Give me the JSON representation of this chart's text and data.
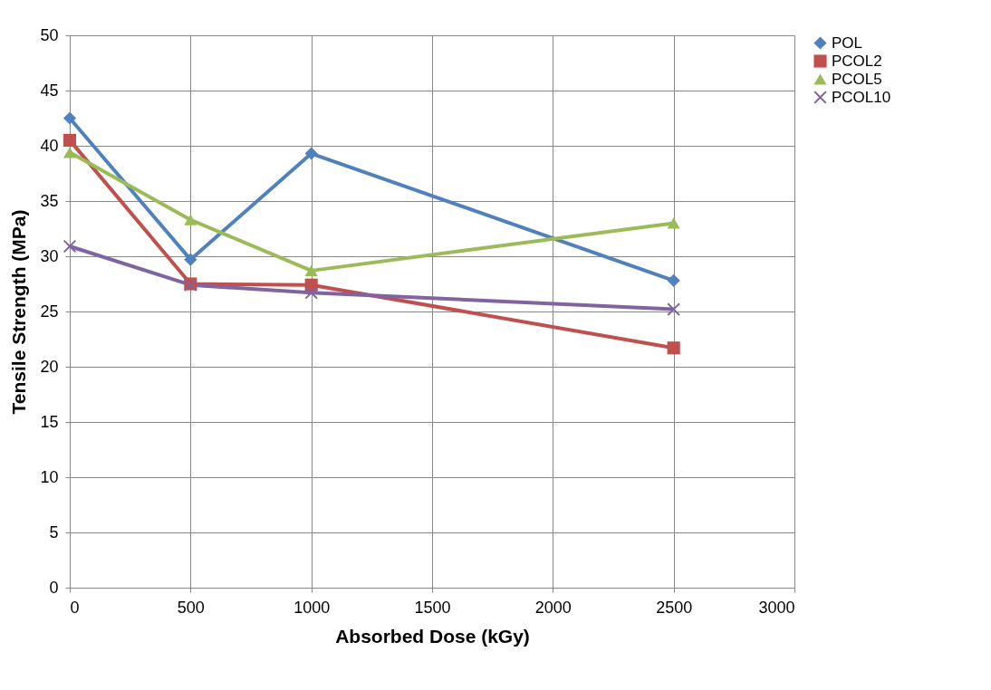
{
  "chart_data": {
    "type": "line",
    "xlabel": "Absorbed Dose (kGy)",
    "ylabel": "Tensile Strength (MPa)",
    "x": [
      0,
      500,
      1000,
      2500
    ],
    "series": [
      {
        "name": "POL",
        "color": "#4f81bd",
        "marker": "diamond",
        "values": [
          42.5,
          29.7,
          39.3,
          27.8
        ]
      },
      {
        "name": "PCOL2",
        "color": "#c0504d",
        "marker": "square",
        "values": [
          40.5,
          27.5,
          27.4,
          21.7
        ]
      },
      {
        "name": "PCOL5",
        "color": "#9bbb59",
        "marker": "triangle",
        "values": [
          39.4,
          33.3,
          28.7,
          33.0
        ]
      },
      {
        "name": "PCOL10",
        "color": "#8064a2",
        "marker": "cross",
        "values": [
          30.9,
          27.4,
          26.7,
          25.2
        ]
      }
    ],
    "xlim": [
      0,
      3000
    ],
    "xticks": [
      0,
      500,
      1000,
      1500,
      2000,
      2500,
      3000
    ],
    "ylim": [
      0,
      50
    ],
    "yticks": [
      0,
      5,
      10,
      15,
      20,
      25,
      30,
      35,
      40,
      45,
      50
    ],
    "grid": true,
    "legend": "right"
  }
}
